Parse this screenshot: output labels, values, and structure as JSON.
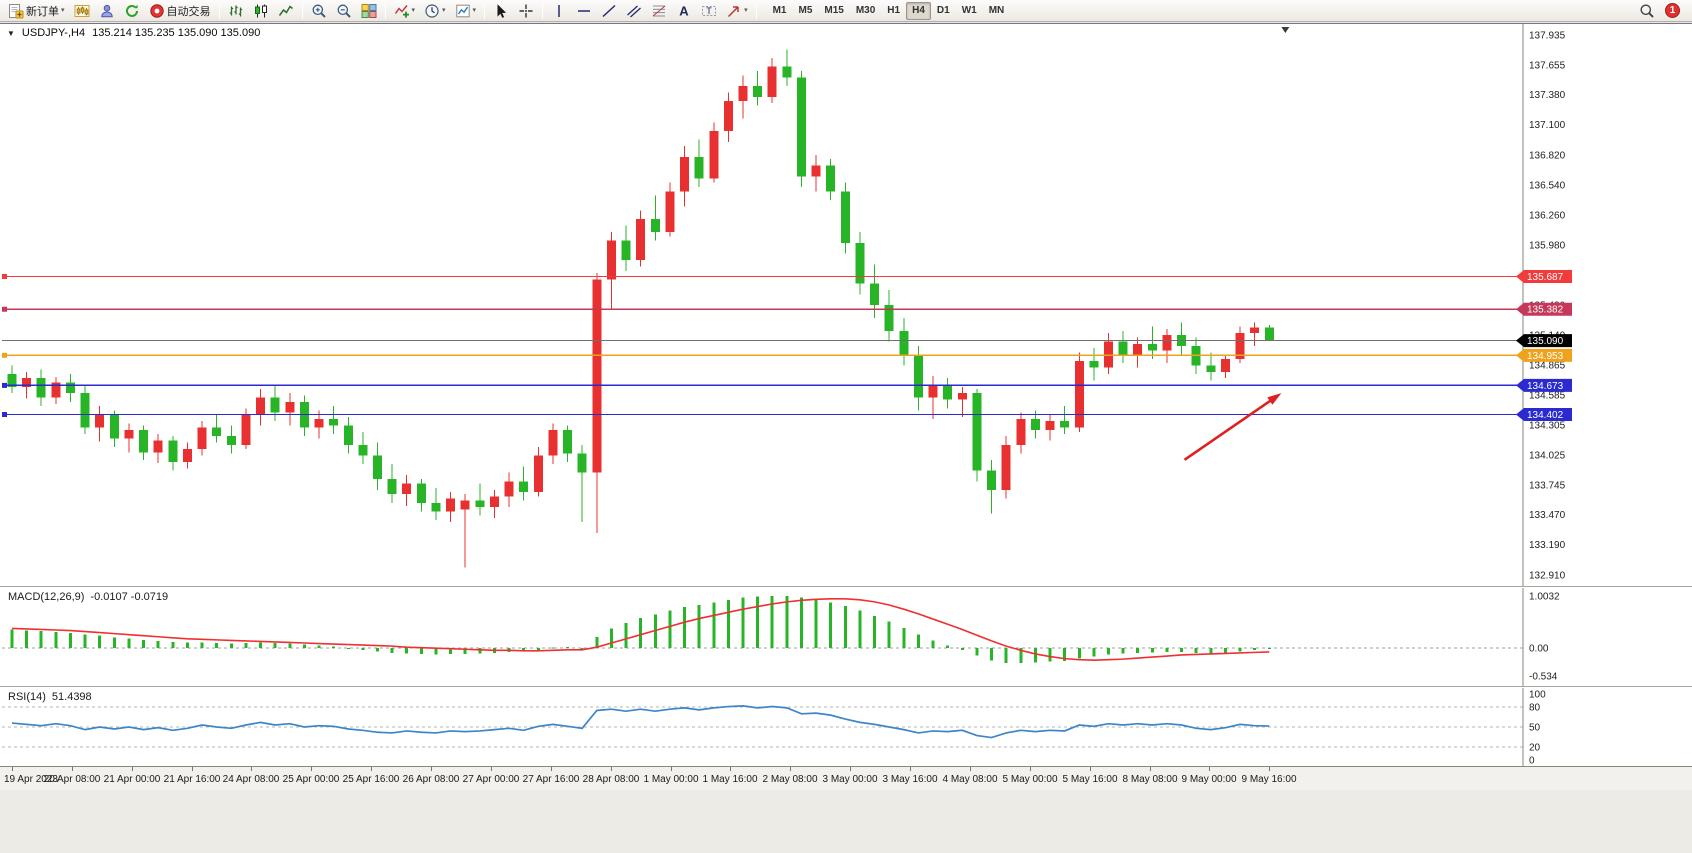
{
  "toolbar": {
    "items": [
      {
        "type": "button",
        "name": "new-order",
        "icon": "new-order-icon",
        "label": "新订单",
        "caret": true
      },
      {
        "type": "button",
        "name": "chart-window",
        "icon": "chart-window-icon"
      },
      {
        "type": "button",
        "name": "profiles",
        "icon": "profiles-icon"
      },
      {
        "type": "button",
        "name": "refresh-data",
        "icon": "data-center-icon"
      },
      {
        "type": "button",
        "name": "auto-trading",
        "icon": "auto-trading-icon",
        "label": "自动交易"
      },
      {
        "type": "sep"
      },
      {
        "type": "button",
        "name": "bar-chart-mode",
        "icon": "bar-chart-icon"
      },
      {
        "type": "button",
        "name": "candlestick-chart-mode",
        "icon": "candle-chart-icon"
      },
      {
        "type": "button",
        "name": "line-chart-mode",
        "icon": "line-chart-icon"
      },
      {
        "type": "sep"
      },
      {
        "type": "button",
        "name": "zoom-in",
        "icon": "zoom-in-icon"
      },
      {
        "type": "button",
        "name": "zoom-out",
        "icon": "zoom-out-icon"
      },
      {
        "type": "button",
        "name": "tile-windows",
        "icon": "tile-windows-icon"
      },
      {
        "type": "sep"
      },
      {
        "type": "button",
        "name": "indicators",
        "icon": "indicators-icon",
        "caret": true
      },
      {
        "type": "button",
        "name": "periods",
        "icon": "periods-icon",
        "caret": true
      },
      {
        "type": "button",
        "name": "templates",
        "icon": "templates-icon",
        "caret": true
      },
      {
        "type": "sep"
      },
      {
        "type": "button",
        "name": "cursor-tool",
        "icon": "cursor-icon"
      },
      {
        "type": "button",
        "name": "crosshair-tool",
        "icon": "crosshair-icon"
      },
      {
        "type": "sep"
      },
      {
        "type": "button",
        "name": "vertical-line-tool",
        "icon": "vertical-line-icon"
      },
      {
        "type": "button",
        "name": "horizontal-line-tool",
        "icon": "horizontal-line-icon"
      },
      {
        "type": "button",
        "name": "trendline-tool",
        "icon": "trendline-icon"
      },
      {
        "type": "button",
        "name": "equidistant-channel-tool",
        "icon": "channel-icon"
      },
      {
        "type": "button",
        "name": "fibonacci-tool",
        "icon": "fibonacci-icon"
      },
      {
        "type": "button",
        "name": "text-tool",
        "icon": "text-icon"
      },
      {
        "type": "button",
        "name": "text-label-tool",
        "icon": "label-icon"
      },
      {
        "type": "button",
        "name": "arrow-objects",
        "icon": "arrows-icon",
        "caret": true
      },
      {
        "type": "sep"
      }
    ],
    "timeframes": [
      {
        "label": "M1"
      },
      {
        "label": "M5"
      },
      {
        "label": "M15"
      },
      {
        "label": "M30"
      },
      {
        "label": "H1"
      },
      {
        "label": "H4",
        "active": true
      },
      {
        "label": "D1"
      },
      {
        "label": "W1"
      },
      {
        "label": "MN"
      }
    ],
    "right": {
      "notification_count": "1"
    }
  },
  "chart_header": {
    "symbol_period": "USDJPY-,H4",
    "ohlc": "135.214 135.235 135.090 135.090"
  },
  "indicators": {
    "macd": {
      "label": "MACD(12,26,9)",
      "values": "-0.0107 -0.0719"
    },
    "rsi": {
      "label": "RSI(14)",
      "value": "51.4398"
    }
  },
  "chart_data": [
    {
      "type": "candlestick",
      "symbol": "USDJPY-",
      "period": "H4",
      "up_color": "#e93030",
      "down_color": "#27b427",
      "candles": [
        [
          134.78,
          134.86,
          134.6,
          134.66
        ],
        [
          134.66,
          134.8,
          134.55,
          134.74
        ],
        [
          134.74,
          134.82,
          134.48,
          134.56
        ],
        [
          134.56,
          134.75,
          134.5,
          134.7
        ],
        [
          134.7,
          134.78,
          134.52,
          134.6
        ],
        [
          134.6,
          134.68,
          134.22,
          134.28
        ],
        [
          134.28,
          134.48,
          134.15,
          134.4
        ],
        [
          134.4,
          134.44,
          134.1,
          134.18
        ],
        [
          134.18,
          134.32,
          134.05,
          134.26
        ],
        [
          134.26,
          134.3,
          133.98,
          134.05
        ],
        [
          134.05,
          134.22,
          133.95,
          134.16
        ],
        [
          134.16,
          134.2,
          133.88,
          133.96
        ],
        [
          133.96,
          134.14,
          133.9,
          134.08
        ],
        [
          134.08,
          134.34,
          134.02,
          134.28
        ],
        [
          134.28,
          134.4,
          134.14,
          134.2
        ],
        [
          134.2,
          134.3,
          134.04,
          134.12
        ],
        [
          134.12,
          134.46,
          134.08,
          134.4
        ],
        [
          134.4,
          134.64,
          134.3,
          134.56
        ],
        [
          134.56,
          134.68,
          134.34,
          134.42
        ],
        [
          134.42,
          134.6,
          134.3,
          134.52
        ],
        [
          134.52,
          134.58,
          134.2,
          134.28
        ],
        [
          134.28,
          134.44,
          134.18,
          134.36
        ],
        [
          134.36,
          134.48,
          134.22,
          134.3
        ],
        [
          134.3,
          134.38,
          134.04,
          134.12
        ],
        [
          134.12,
          134.24,
          133.94,
          134.02
        ],
        [
          134.02,
          134.14,
          133.7,
          133.8
        ],
        [
          133.8,
          133.94,
          133.58,
          133.66
        ],
        [
          133.66,
          133.84,
          133.55,
          133.76
        ],
        [
          133.76,
          133.8,
          133.5,
          133.58
        ],
        [
          133.58,
          133.72,
          133.42,
          133.5
        ],
        [
          133.5,
          133.68,
          133.4,
          133.62
        ],
        [
          133.52,
          133.66,
          132.98,
          133.6
        ],
        [
          133.6,
          133.76,
          133.46,
          133.54
        ],
        [
          133.54,
          133.7,
          133.44,
          133.64
        ],
        [
          133.64,
          133.86,
          133.54,
          133.78
        ],
        [
          133.78,
          133.92,
          133.6,
          133.68
        ],
        [
          133.68,
          134.1,
          133.64,
          134.02
        ],
        [
          134.02,
          134.32,
          133.94,
          134.26
        ],
        [
          134.26,
          134.3,
          133.96,
          134.04
        ],
        [
          134.04,
          134.12,
          133.4,
          133.86
        ],
        [
          133.86,
          135.72,
          133.3,
          135.66
        ],
        [
          135.66,
          136.1,
          135.38,
          136.02
        ],
        [
          136.02,
          136.16,
          135.74,
          135.84
        ],
        [
          135.84,
          136.3,
          135.78,
          136.22
        ],
        [
          136.22,
          136.44,
          136.02,
          136.1
        ],
        [
          136.1,
          136.56,
          136.06,
          136.48
        ],
        [
          136.48,
          136.9,
          136.34,
          136.8
        ],
        [
          136.8,
          136.96,
          136.52,
          136.6
        ],
        [
          136.6,
          137.12,
          136.56,
          137.04
        ],
        [
          137.04,
          137.4,
          136.94,
          137.32
        ],
        [
          137.32,
          137.56,
          137.16,
          137.46
        ],
        [
          137.46,
          137.6,
          137.28,
          137.36
        ],
        [
          137.36,
          137.72,
          137.3,
          137.64
        ],
        [
          137.64,
          137.8,
          137.46,
          137.54
        ],
        [
          137.54,
          137.6,
          136.52,
          136.62
        ],
        [
          136.62,
          136.82,
          136.48,
          136.72
        ],
        [
          136.72,
          136.78,
          136.4,
          136.48
        ],
        [
          136.48,
          136.56,
          135.9,
          136.0
        ],
        [
          136.0,
          136.1,
          135.52,
          135.62
        ],
        [
          135.62,
          135.8,
          135.3,
          135.42
        ],
        [
          135.42,
          135.56,
          135.08,
          135.18
        ],
        [
          135.18,
          135.3,
          134.86,
          134.96
        ],
        [
          134.96,
          135.04,
          134.44,
          134.56
        ],
        [
          134.56,
          134.76,
          134.36,
          134.68
        ],
        [
          134.68,
          134.74,
          134.46,
          134.54
        ],
        [
          134.54,
          134.66,
          134.38,
          134.6
        ],
        [
          134.6,
          134.64,
          133.78,
          133.88
        ],
        [
          133.88,
          133.98,
          133.48,
          133.7
        ],
        [
          133.7,
          134.2,
          133.62,
          134.12
        ],
        [
          134.12,
          134.42,
          134.04,
          134.36
        ],
        [
          134.36,
          134.44,
          134.18,
          134.26
        ],
        [
          134.26,
          134.4,
          134.16,
          134.34
        ],
        [
          134.34,
          134.48,
          134.22,
          134.28
        ],
        [
          134.28,
          134.98,
          134.24,
          134.9
        ],
        [
          134.9,
          135.02,
          134.72,
          134.84
        ],
        [
          134.84,
          135.16,
          134.78,
          135.08
        ],
        [
          135.08,
          135.18,
          134.88,
          134.96
        ],
        [
          134.96,
          135.12,
          134.84,
          135.06
        ],
        [
          135.06,
          135.22,
          134.92,
          135.0
        ],
        [
          135.0,
          135.2,
          134.88,
          135.14
        ],
        [
          135.14,
          135.26,
          134.96,
          135.04
        ],
        [
          135.04,
          135.12,
          134.78,
          134.86
        ],
        [
          134.86,
          134.98,
          134.72,
          134.8
        ],
        [
          134.8,
          134.96,
          134.74,
          134.92
        ],
        [
          134.92,
          135.22,
          134.88,
          135.16
        ],
        [
          135.16,
          135.26,
          135.04,
          135.214
        ],
        [
          135.214,
          135.235,
          135.09,
          135.09
        ]
      ],
      "y_ticks": [
        137.935,
        137.655,
        137.38,
        137.1,
        136.82,
        136.54,
        136.26,
        135.98,
        135.7,
        135.42,
        135.14,
        134.865,
        134.585,
        134.305,
        134.025,
        133.745,
        133.47,
        133.19,
        132.91
      ],
      "x_labels": [
        "19 Apr 2023",
        "20 Apr 08:00",
        "21 Apr 00:00",
        "21 Apr 16:00",
        "24 Apr 08:00",
        "25 Apr 00:00",
        "25 Apr 16:00",
        "26 Apr 08:00",
        "27 Apr 00:00",
        "27 Apr 16:00",
        "28 Apr 08:00",
        "1 May 00:00",
        "1 May 16:00",
        "2 May 08:00",
        "3 May 00:00",
        "3 May 16:00",
        "4 May 08:00",
        "5 May 00:00",
        "5 May 16:00",
        "8 May 08:00",
        "9 May 00:00",
        "9 May 16:00"
      ],
      "hlines": [
        {
          "value": 135.687,
          "label": "135.687",
          "color": "#f23b3b"
        },
        {
          "value": 135.382,
          "label": "135.382",
          "color": "#c5385a"
        },
        {
          "value": 134.953,
          "label": "134.953",
          "color": "#efa21b"
        },
        {
          "value": 134.673,
          "label": "134.673",
          "color": "#2a2ad0"
        },
        {
          "value": 134.402,
          "label": "134.402",
          "color": "#2a2ad0"
        }
      ],
      "current_price": {
        "value": 135.09,
        "label": "135.090",
        "line_color": "#707070",
        "badge_color": "#000000"
      },
      "arrow_annotation": {
        "from_bar": 80.2,
        "from_price": 133.98,
        "to_bar": 86.6,
        "to_price": 134.58,
        "color": "#e02020"
      }
    },
    {
      "type": "macd",
      "title": "MACD(12,26,9)",
      "current_values": [
        -0.0107,
        -0.0719
      ],
      "hist_color": "#27b427",
      "signal_color": "#f03030",
      "ylim": [
        -0.534,
        1.0032
      ],
      "y_ticks": [
        {
          "v": 1.0032,
          "label": "1.0032"
        },
        {
          "v": 0,
          "label": "0.00"
        },
        {
          "v": -0.534,
          "label": "-0.534"
        }
      ],
      "histogram": [
        0.36,
        0.34,
        0.33,
        0.31,
        0.29,
        0.26,
        0.24,
        0.21,
        0.19,
        0.16,
        0.14,
        0.12,
        0.11,
        0.11,
        0.1,
        0.09,
        0.1,
        0.11,
        0.1,
        0.09,
        0.07,
        0.05,
        0.03,
        0.0,
        -0.03,
        -0.06,
        -0.09,
        -0.1,
        -0.11,
        -0.12,
        -0.11,
        -0.11,
        -0.1,
        -0.09,
        -0.07,
        -0.06,
        -0.03,
        0.01,
        0.02,
        0.0,
        0.22,
        0.38,
        0.48,
        0.58,
        0.65,
        0.72,
        0.79,
        0.83,
        0.88,
        0.93,
        0.97,
        0.99,
        1.0,
        1.0,
        0.97,
        0.93,
        0.88,
        0.81,
        0.72,
        0.62,
        0.51,
        0.39,
        0.26,
        0.15,
        0.05,
        -0.03,
        -0.14,
        -0.24,
        -0.28,
        -0.28,
        -0.27,
        -0.26,
        -0.25,
        -0.2,
        -0.16,
        -0.12,
        -0.1,
        -0.09,
        -0.08,
        -0.07,
        -0.07,
        -0.09,
        -0.11,
        -0.1,
        -0.06,
        -0.03,
        -0.0107
      ],
      "signal": [
        0.38,
        0.37,
        0.36,
        0.35,
        0.34,
        0.32,
        0.3,
        0.28,
        0.26,
        0.24,
        0.22,
        0.2,
        0.18,
        0.17,
        0.16,
        0.15,
        0.14,
        0.13,
        0.12,
        0.11,
        0.1,
        0.09,
        0.08,
        0.07,
        0.06,
        0.05,
        0.04,
        0.02,
        0.01,
        0.0,
        -0.01,
        -0.02,
        -0.03,
        -0.04,
        -0.04,
        -0.05,
        -0.05,
        -0.04,
        -0.03,
        -0.03,
        0.02,
        0.1,
        0.18,
        0.26,
        0.34,
        0.42,
        0.5,
        0.57,
        0.63,
        0.69,
        0.75,
        0.8,
        0.85,
        0.89,
        0.92,
        0.94,
        0.95,
        0.95,
        0.93,
        0.89,
        0.83,
        0.75,
        0.66,
        0.56,
        0.46,
        0.36,
        0.25,
        0.14,
        0.04,
        -0.04,
        -0.11,
        -0.16,
        -0.2,
        -0.22,
        -0.23,
        -0.22,
        -0.21,
        -0.19,
        -0.17,
        -0.15,
        -0.13,
        -0.12,
        -0.11,
        -0.1,
        -0.09,
        -0.08,
        -0.0719
      ]
    },
    {
      "type": "line",
      "title": "RSI(14)",
      "current_value": 51.4398,
      "line_color": "#3d85c8",
      "ylim": [
        0,
        100
      ],
      "levels": [
        80,
        50,
        20
      ],
      "y_ticks": [
        {
          "v": 100,
          "label": "100"
        },
        {
          "v": 80,
          "label": "80"
        },
        {
          "v": 50,
          "label": "50"
        },
        {
          "v": 20,
          "label": "20"
        },
        {
          "v": 0,
          "label": "0"
        }
      ],
      "values": [
        56,
        54,
        52,
        55,
        52,
        46,
        50,
        47,
        50,
        46,
        49,
        45,
        48,
        53,
        50,
        48,
        53,
        57,
        53,
        55,
        50,
        52,
        51,
        47,
        45,
        42,
        41,
        44,
        42,
        41,
        44,
        43,
        44,
        46,
        48,
        45,
        51,
        54,
        51,
        48,
        75,
        77,
        74,
        77,
        74,
        77,
        79,
        76,
        79,
        81,
        82,
        79,
        81,
        79,
        70,
        71,
        68,
        62,
        57,
        54,
        50,
        46,
        41,
        44,
        43,
        45,
        37,
        34,
        41,
        45,
        43,
        45,
        44,
        53,
        51,
        55,
        53,
        55,
        53,
        55,
        53,
        48,
        46,
        49,
        54,
        52,
        51.4398
      ]
    }
  ]
}
